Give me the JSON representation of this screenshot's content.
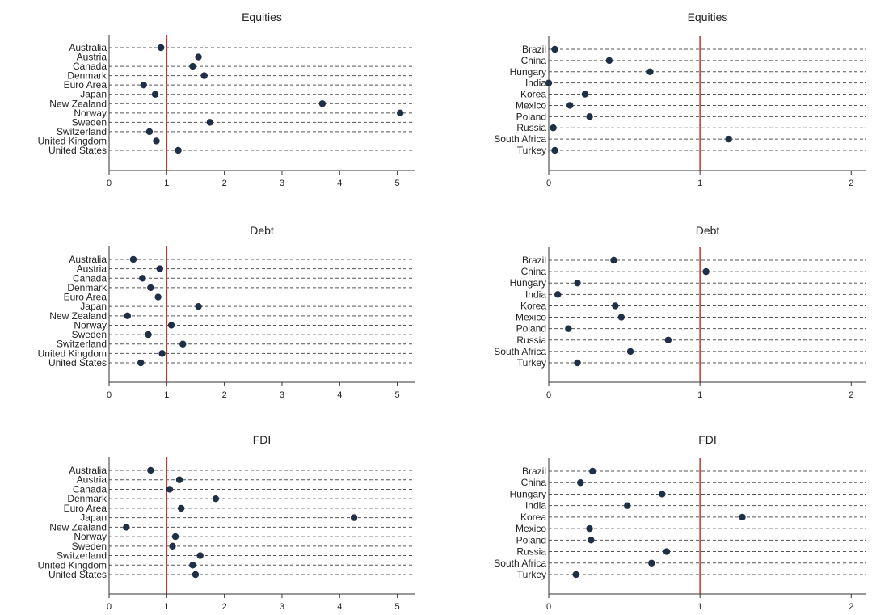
{
  "colors": {
    "dot": "#1f2f45",
    "ref_line": "#c0392b",
    "dashed": "#555555",
    "axis": "#333333"
  },
  "chart_data": [
    {
      "type": "scatter",
      "title": "Equities",
      "categories": [
        "Australia",
        "Austria",
        "Canada",
        "Denmark",
        "Euro Area",
        "Japan",
        "New Zealand",
        "Norway",
        "Sweden",
        "Switzerland",
        "United Kingdom",
        "United States"
      ],
      "values": [
        0.9,
        1.55,
        1.45,
        1.65,
        0.6,
        0.8,
        3.7,
        5.05,
        1.75,
        0.7,
        0.82,
        1.2
      ],
      "xlim": [
        0,
        5.3
      ],
      "xticks": [
        0,
        1,
        2,
        3,
        4,
        5
      ],
      "xtick_labels": [
        "0",
        "1",
        "2",
        "3",
        "4",
        "5"
      ],
      "ref_line": 1
    },
    {
      "type": "scatter",
      "title": "Equities",
      "categories": [
        "Brazil",
        "China",
        "Hungary",
        "India",
        "Korea",
        "Mexico",
        "Poland",
        "Russia",
        "South Africa",
        "Turkey"
      ],
      "values": [
        0.04,
        0.4,
        0.67,
        0.0,
        0.24,
        0.14,
        0.27,
        0.03,
        1.19,
        0.04
      ],
      "xlim": [
        0,
        2.1
      ],
      "xticks": [
        0,
        1,
        2
      ],
      "xtick_labels": [
        "0",
        "1",
        "2"
      ],
      "ref_line": 1
    },
    {
      "type": "scatter",
      "title": "Debt",
      "categories": [
        "Australia",
        "Austria",
        "Canada",
        "Denmark",
        "Euro Area",
        "Japan",
        "New Zealand",
        "Norway",
        "Sweden",
        "Switzerland",
        "United Kingdom",
        "United States"
      ],
      "values": [
        0.42,
        0.88,
        0.58,
        0.72,
        0.85,
        1.55,
        0.32,
        1.08,
        0.68,
        1.28,
        0.92,
        0.55
      ],
      "xlim": [
        0,
        5.3
      ],
      "xticks": [
        0,
        1,
        2,
        3,
        4,
        5
      ],
      "xtick_labels": [
        "0",
        "1",
        "2",
        "3",
        "4",
        "5"
      ],
      "ref_line": 1
    },
    {
      "type": "scatter",
      "title": "Debt",
      "categories": [
        "Brazil",
        "China",
        "Hungary",
        "India",
        "Korea",
        "Mexico",
        "Poland",
        "Russia",
        "South Africa",
        "Turkey"
      ],
      "values": [
        0.43,
        1.04,
        0.19,
        0.06,
        0.44,
        0.48,
        0.13,
        0.79,
        0.54,
        0.19
      ],
      "xlim": [
        0,
        2.1
      ],
      "xticks": [
        0,
        1,
        2
      ],
      "xtick_labels": [
        "0",
        "1",
        "2"
      ],
      "ref_line": 1
    },
    {
      "type": "scatter",
      "title": "FDI",
      "categories": [
        "Australia",
        "Austria",
        "Canada",
        "Denmark",
        "Euro Area",
        "Japan",
        "New Zealand",
        "Norway",
        "Sweden",
        "Switzerland",
        "United Kingdom",
        "United States"
      ],
      "values": [
        0.72,
        1.22,
        1.05,
        1.85,
        1.25,
        4.25,
        0.3,
        1.15,
        1.1,
        1.58,
        1.45,
        1.5
      ],
      "xlim": [
        0,
        5.3
      ],
      "xticks": [
        0,
        1,
        2,
        3,
        4,
        5
      ],
      "xtick_labels": [
        "0",
        "1",
        "2",
        "3",
        "4",
        "5"
      ],
      "ref_line": 1
    },
    {
      "type": "scatter",
      "title": "FDI",
      "categories": [
        "Brazil",
        "China",
        "Hungary",
        "India",
        "Korea",
        "Mexico",
        "Poland",
        "Russia",
        "South Africa",
        "Turkey"
      ],
      "values": [
        0.29,
        0.21,
        0.75,
        0.52,
        1.28,
        0.27,
        0.28,
        0.78,
        0.68,
        0.18
      ],
      "xlim": [
        0,
        2.1
      ],
      "xticks": [
        0,
        1,
        2
      ],
      "xtick_labels": [
        "0",
        "1",
        "2"
      ],
      "ref_line": 1
    }
  ]
}
